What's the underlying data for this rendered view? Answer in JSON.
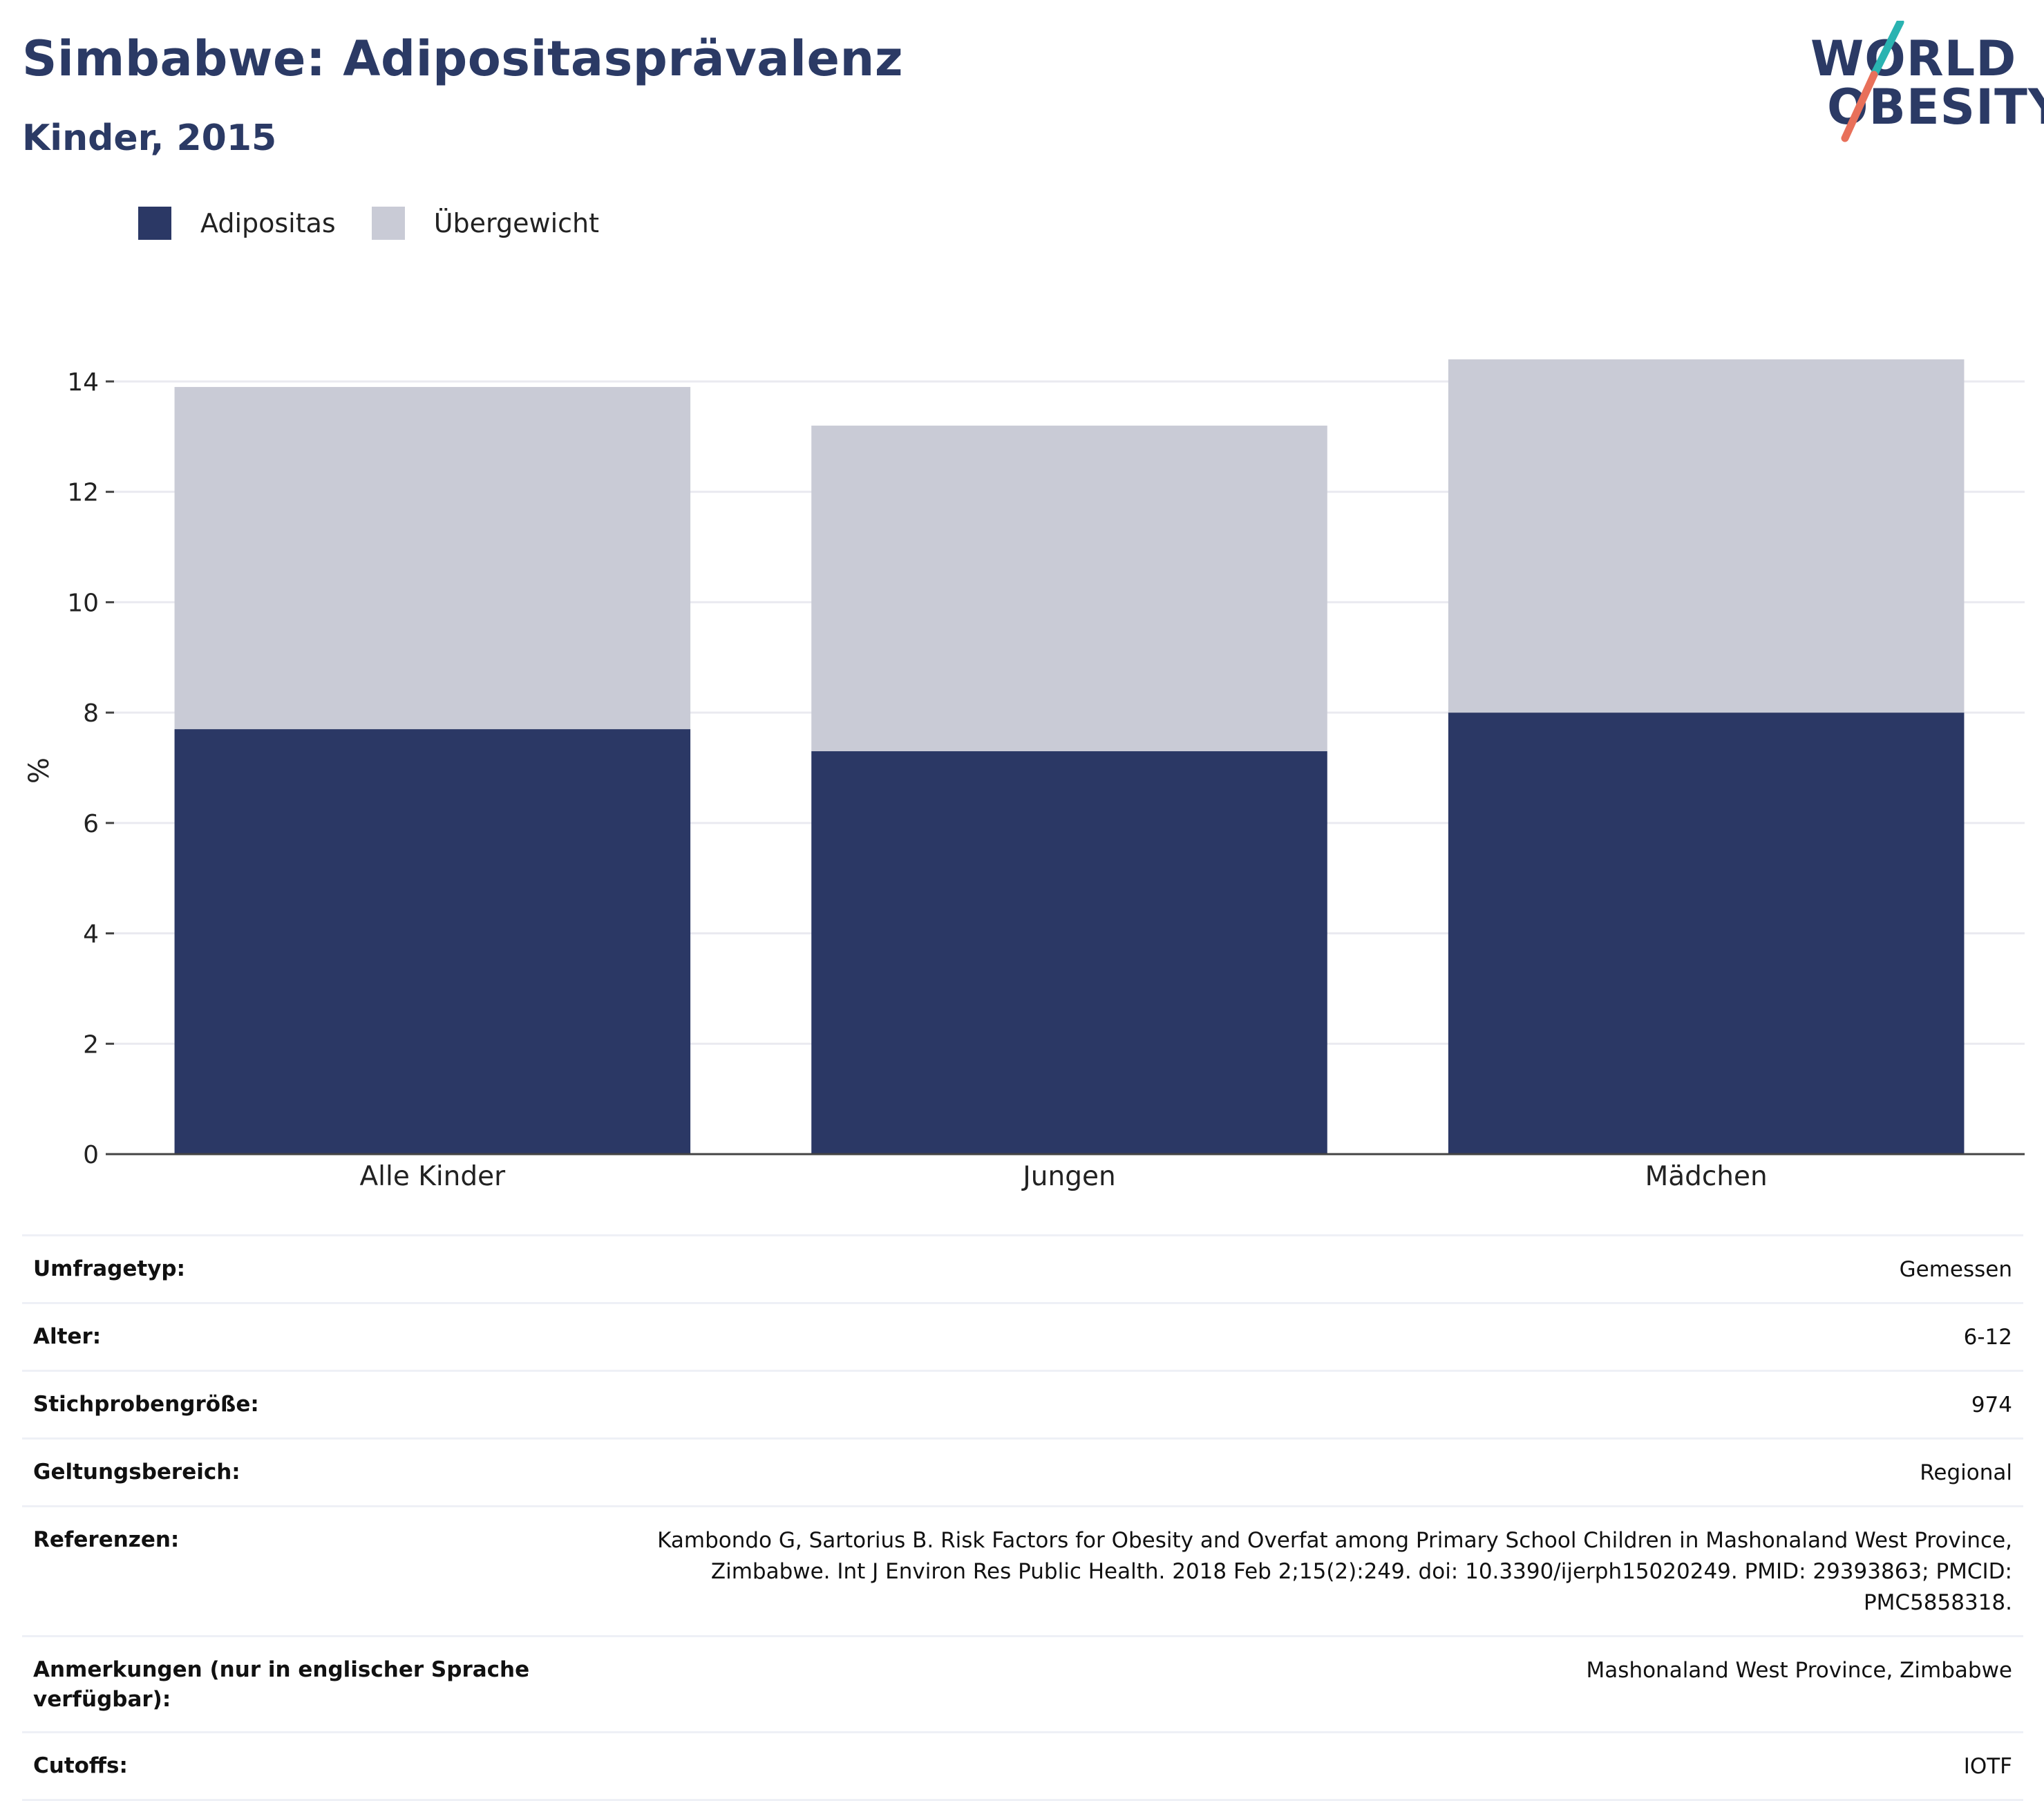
{
  "header": {
    "title": "Simbabwe: Adipositasprävalenz",
    "subtitle": "Kinder, 2015"
  },
  "logo": {
    "line1": "WORLD",
    "line2": "OBESITY",
    "colors": {
      "text": "#2b3a65",
      "slash_top": "#2ab3b1",
      "slash_bottom": "#e8705a"
    }
  },
  "legend": [
    {
      "label": "Adipositas",
      "color": "#2b3865"
    },
    {
      "label": "Übergewicht",
      "color": "#c9cbd6"
    }
  ],
  "chart_data": {
    "type": "bar",
    "stacked": true,
    "categories": [
      "Alle Kinder",
      "Jungen",
      "Mädchen"
    ],
    "series": [
      {
        "name": "Adipositas",
        "color": "#2b3865",
        "values": [
          7.7,
          7.3,
          8.0
        ]
      },
      {
        "name": "Übergewicht",
        "color": "#c9cbd6",
        "values": [
          6.2,
          5.9,
          6.4
        ]
      }
    ],
    "ylabel": "%",
    "ylim": [
      0,
      14.4
    ],
    "yticks": [
      0,
      2,
      4,
      6,
      8,
      10,
      12,
      14
    ],
    "grid": true,
    "legend_position": "top-left"
  },
  "meta": [
    {
      "key": "Umfragetyp:",
      "value": "Gemessen"
    },
    {
      "key": "Alter:",
      "value": "6-12"
    },
    {
      "key": "Stichprobengröße:",
      "value": "974"
    },
    {
      "key": "Geltungsbereich:",
      "value": "Regional"
    },
    {
      "key": "Referenzen:",
      "value": "Kambondo G, Sartorius B. Risk Factors for Obesity and Overfat among Primary School Children in Mashonaland West Province, Zimbabwe. Int J Environ Res Public Health. 2018 Feb 2;15(2):249. doi: 10.3390/ijerph15020249. PMID: 29393863; PMCID: PMC5858318."
    },
    {
      "key": "Anmerkungen (nur in englischer Sprache verfügbar):",
      "value": "Mashonaland West Province, Zimbabwe"
    },
    {
      "key": "Cutoffs:",
      "value": "IOTF"
    }
  ]
}
